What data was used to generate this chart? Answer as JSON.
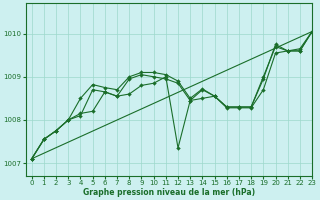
{
  "title": "Graphe pression niveau de la mer (hPa)",
  "bg_color": "#cdf0f0",
  "grid_color": "#9dd8cc",
  "line_color": "#1a6e2a",
  "xlim": [
    -0.5,
    23
  ],
  "ylim": [
    1006.7,
    1010.7
  ],
  "yticks": [
    1007,
    1008,
    1009,
    1010
  ],
  "xticks": [
    0,
    1,
    2,
    3,
    4,
    5,
    6,
    7,
    8,
    9,
    10,
    11,
    12,
    13,
    14,
    15,
    16,
    17,
    18,
    19,
    20,
    21,
    22,
    23
  ],
  "series": [
    [
      1007.1,
      1007.55,
      1007.75,
      1008.0,
      1008.1,
      1008.7,
      1008.65,
      1008.55,
      1008.95,
      1009.05,
      1009.0,
      1008.95,
      1008.85,
      1008.45,
      1008.7,
      1008.55,
      1008.3,
      1008.3,
      1008.3,
      1008.95,
      1009.75,
      1009.6,
      1009.65,
      1010.05
    ],
    [
      1007.1,
      1007.55,
      1007.75,
      1008.0,
      1008.15,
      1008.2,
      1008.65,
      1008.55,
      1008.6,
      1008.8,
      1008.85,
      1009.0,
      1007.35,
      1008.45,
      1008.5,
      1008.55,
      1008.28,
      1008.28,
      1008.28,
      1008.7,
      1009.55,
      1009.6,
      1009.6,
      1010.05
    ],
    [
      1007.1,
      1007.55,
      1007.75,
      1008.0,
      1008.5,
      1008.82,
      1008.75,
      1008.7,
      1009.0,
      1009.1,
      1009.1,
      1009.05,
      1008.9,
      1008.5,
      1008.72,
      1008.55,
      1008.3,
      1008.3,
      1008.3,
      1009.0,
      1009.7,
      1009.6,
      1009.6,
      1010.05
    ]
  ],
  "line_series": [
    [
      1007.1,
      1010.05
    ],
    [
      0,
      23
    ]
  ]
}
